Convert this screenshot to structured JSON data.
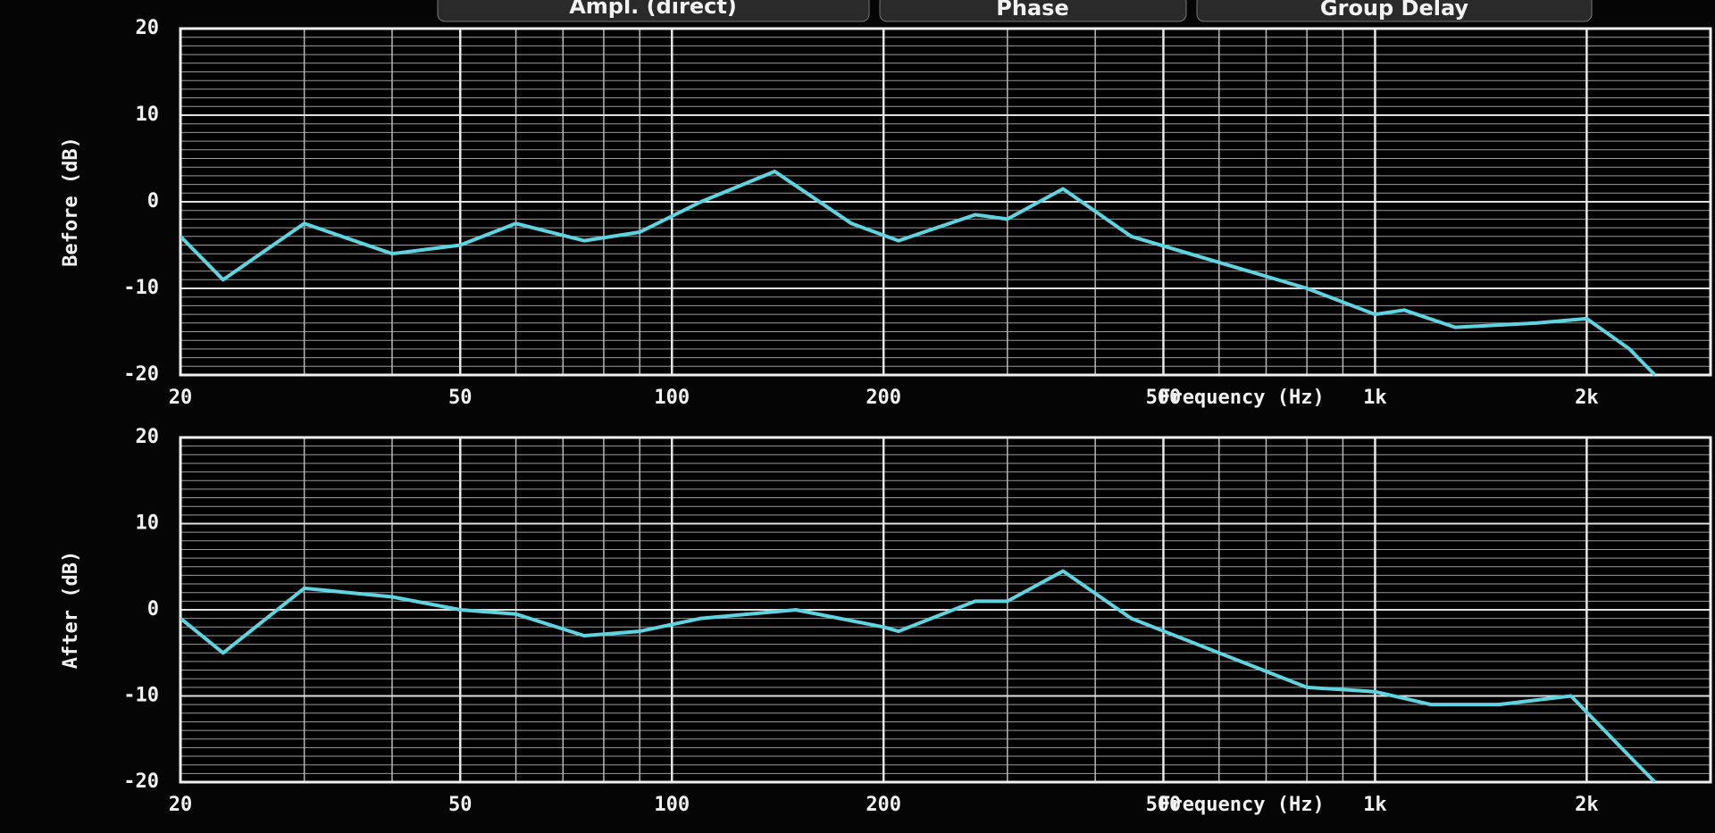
{
  "tabs": [
    "Ampl. (direct)",
    "Phase",
    "Group Delay"
  ],
  "chart_data": [
    {
      "type": "line",
      "ylabel": "Before (dB)",
      "xlabel": "Frequency (Hz)",
      "color": "#5fd3e0",
      "log_x": true,
      "grid": true,
      "x": [
        20,
        23,
        30,
        40,
        50,
        60,
        75,
        90,
        110,
        140,
        180,
        210,
        270,
        300,
        360,
        450,
        600,
        800,
        1000,
        1100,
        1300,
        1700,
        2000,
        2300,
        2500
      ],
      "values": [
        -4,
        -9,
        -2.5,
        -6,
        -5,
        -2.5,
        -4.5,
        -3.5,
        0,
        3.5,
        -2.5,
        -4.5,
        -1.5,
        -2,
        1.5,
        -4,
        -7,
        -10,
        -13,
        -12.5,
        -14.5,
        -14,
        -13.5,
        -17,
        -20
      ],
      "xlim": [
        20,
        3000
      ],
      "ylim": [
        -20,
        20
      ],
      "xticks": [
        20,
        50,
        100,
        200,
        500,
        {
          "value": 1000,
          "label": "1k"
        },
        {
          "value": 2000,
          "label": "2k"
        }
      ],
      "yticks": [
        -20,
        -10,
        0,
        10,
        20
      ],
      "minor_xticks": [
        30,
        40,
        60,
        70,
        80,
        90,
        300,
        400,
        600,
        700,
        800,
        900
      ],
      "minor_yticks": [
        -19,
        -18,
        -17,
        -16,
        -15,
        -14,
        -13,
        -12,
        -11,
        -9,
        -8,
        -7,
        -6,
        -5,
        -4,
        -3,
        -2,
        -1,
        1,
        2,
        3,
        4,
        5,
        6,
        7,
        8,
        9,
        11,
        12,
        13,
        14,
        15,
        16,
        17,
        18,
        19
      ]
    },
    {
      "type": "line",
      "ylabel": "After (dB)",
      "xlabel": "Frequency (Hz)",
      "color": "#5fd3e0",
      "log_x": true,
      "grid": true,
      "x": [
        20,
        23,
        30,
        40,
        50,
        60,
        75,
        90,
        110,
        150,
        200,
        210,
        270,
        300,
        360,
        450,
        600,
        800,
        1000,
        1200,
        1500,
        1900,
        2300,
        2500
      ],
      "values": [
        -1,
        -5,
        2.5,
        1.5,
        0,
        -0.5,
        -3,
        -2.5,
        -1,
        0,
        -2,
        -2.5,
        1,
        1,
        4.5,
        -1,
        -5,
        -9,
        -9.5,
        -11,
        -11,
        -10,
        -17,
        -20
      ],
      "xlim": [
        20,
        3000
      ],
      "ylim": [
        -20,
        20
      ],
      "xticks": [
        20,
        50,
        100,
        200,
        500,
        {
          "value": 1000,
          "label": "1k"
        },
        {
          "value": 2000,
          "label": "2k"
        }
      ],
      "yticks": [
        -20,
        -10,
        0,
        10,
        20
      ],
      "minor_xticks": [
        30,
        40,
        60,
        70,
        80,
        90,
        300,
        400,
        600,
        700,
        800,
        900
      ],
      "minor_yticks": [
        -19,
        -18,
        -17,
        -16,
        -15,
        -14,
        -13,
        -12,
        -11,
        -9,
        -8,
        -7,
        -6,
        -5,
        -4,
        -3,
        -2,
        -1,
        1,
        2,
        3,
        4,
        5,
        6,
        7,
        8,
        9,
        11,
        12,
        13,
        14,
        15,
        16,
        17,
        18,
        19
      ]
    }
  ]
}
